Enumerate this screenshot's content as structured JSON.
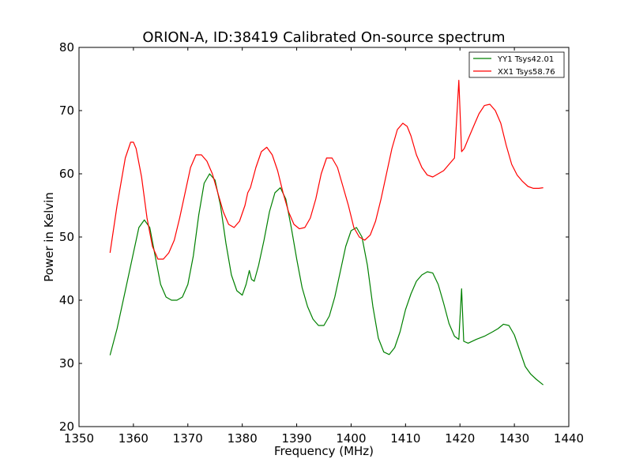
{
  "chart_data": {
    "type": "line",
    "title": "ORION-A, ID:38419 Calibrated On-source spectrum",
    "xlabel": "Frequency (MHz)",
    "ylabel": "Power in Kelvin",
    "xlim": [
      1350,
      1440
    ],
    "ylim": [
      20,
      80
    ],
    "xticks": [
      1350,
      1360,
      1370,
      1380,
      1390,
      1400,
      1410,
      1420,
      1430,
      1440
    ],
    "yticks": [
      20,
      30,
      40,
      50,
      60,
      70,
      80
    ],
    "grid": false,
    "legend_position": "top-right",
    "series": [
      {
        "name": "YY1 Tsys42.01",
        "color": "#008000",
        "x": [
          1355.7,
          1357,
          1358.5,
          1360,
          1361,
          1362,
          1363,
          1364,
          1365,
          1366,
          1367,
          1368,
          1369,
          1370,
          1371,
          1372,
          1373,
          1374,
          1375,
          1376,
          1377,
          1378,
          1379,
          1380,
          1380.7,
          1381.3,
          1381.7,
          1382.2,
          1383,
          1384,
          1385,
          1386,
          1387,
          1388,
          1389,
          1390,
          1391,
          1392,
          1393,
          1394,
          1395,
          1396,
          1397,
          1398,
          1399,
          1400,
          1401,
          1402,
          1403,
          1404,
          1405,
          1406,
          1407,
          1408,
          1409,
          1410,
          1411,
          1412,
          1413,
          1414,
          1415,
          1416,
          1417,
          1418,
          1419,
          1419.8,
          1420.3,
          1420.7,
          1421.5,
          1423,
          1424.5,
          1426,
          1427,
          1428,
          1429,
          1430,
          1431,
          1432,
          1433,
          1434,
          1435.3
        ],
        "y": [
          31.3,
          35.5,
          41.5,
          47.5,
          51.5,
          52.7,
          51.5,
          47,
          42.5,
          40.5,
          40,
          40,
          40.5,
          42.5,
          47,
          53.5,
          58.5,
          60,
          59,
          55,
          49,
          44,
          41.5,
          40.8,
          42.5,
          44.7,
          43.3,
          43,
          45.5,
          49.5,
          54,
          57,
          57.8,
          56,
          51.5,
          46.5,
          42,
          39,
          37,
          36,
          36,
          37.5,
          40.5,
          44.5,
          48.5,
          51,
          51.5,
          50,
          45.5,
          39,
          34,
          31.8,
          31.4,
          32.5,
          35,
          38.5,
          41,
          43,
          44,
          44.5,
          44.3,
          42.5,
          39.5,
          36.3,
          34.3,
          33.8,
          41.8,
          33.5,
          33.2,
          33.8,
          34.3,
          35,
          35.5,
          36.2,
          36,
          34.5,
          32,
          29.5,
          28.3,
          27.5,
          26.6
        ]
      },
      {
        "name": "XX1 Tsys58.76",
        "color": "#ff0000",
        "x": [
          1355.7,
          1357,
          1358.5,
          1359.5,
          1360,
          1360.5,
          1361.5,
          1362.5,
          1363.5,
          1364.5,
          1365.5,
          1366.5,
          1367.5,
          1368.5,
          1369.5,
          1370.5,
          1371.5,
          1372.5,
          1373.5,
          1374.5,
          1375.5,
          1376.5,
          1377.5,
          1378.5,
          1379.5,
          1380.5,
          1381,
          1381.5,
          1382.5,
          1383.5,
          1384.5,
          1385.5,
          1386.5,
          1387.5,
          1388.5,
          1389.5,
          1390.5,
          1391.5,
          1392.5,
          1393.5,
          1394.5,
          1395.5,
          1396.5,
          1397.5,
          1398.5,
          1399.5,
          1400.5,
          1401.5,
          1402.5,
          1403.5,
          1404.5,
          1405.5,
          1406.5,
          1407.5,
          1408.5,
          1409.5,
          1410.3,
          1411,
          1412,
          1413,
          1414,
          1415,
          1416,
          1417,
          1418,
          1419,
          1419.8,
          1420.3,
          1420.8,
          1421.5,
          1422.5,
          1423.5,
          1424.5,
          1425.5,
          1426.5,
          1427.5,
          1428.5,
          1429.5,
          1430.5,
          1431.5,
          1432.5,
          1433.5,
          1434.5,
          1435.3
        ],
        "y": [
          47.5,
          55,
          62.5,
          65,
          65,
          64,
          59.5,
          53,
          48.5,
          46.5,
          46.5,
          47.5,
          49.5,
          53,
          57,
          61,
          63,
          63,
          62,
          60,
          57,
          54,
          52,
          51.5,
          52.5,
          55,
          57,
          57.8,
          61,
          63.5,
          64.2,
          63,
          60.5,
          57,
          54,
          52,
          51.3,
          51.5,
          53,
          56,
          60,
          62.5,
          62.5,
          61,
          58,
          55,
          51.5,
          50,
          49.5,
          50.3,
          52.5,
          56,
          60,
          64,
          67,
          68,
          67.5,
          66,
          63,
          61,
          59.8,
          59.5,
          60,
          60.5,
          61.5,
          62.5,
          74.8,
          63.5,
          64,
          65.5,
          67.5,
          69.5,
          70.8,
          71,
          70,
          68,
          64.5,
          61.5,
          59.8,
          58.8,
          58,
          57.7,
          57.7,
          57.8
        ]
      }
    ]
  }
}
